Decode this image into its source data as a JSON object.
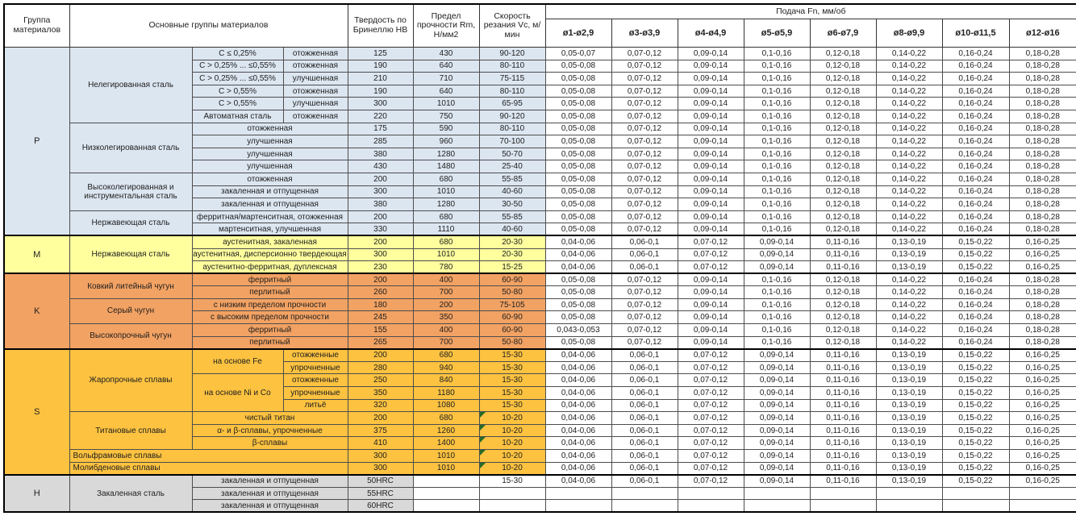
{
  "colors": {
    "zone_P": "#dce6f1",
    "zone_M": "#ffff9e",
    "zone_K": "#f2a263",
    "zone_S": "#fcc240",
    "zone_H": "#d9d9d9",
    "flag_green": "#276b27",
    "grid": "#4d4d4d"
  },
  "header": {
    "group": "Группа материалов",
    "main_groups": "Основные группы материалов",
    "hardness": "Твердость по Бринеллю HB",
    "strength": "Предел прочности Rm, Н/мм2",
    "speed": "Скорость резания Vc, м/мин",
    "feed": "Подача Fn, мм/об",
    "diameters": [
      "ø1-ø2,9",
      "ø3-ø3,9",
      "ø4-ø4,9",
      "ø5-ø5,9",
      "ø6-ø7,9",
      "ø8-ø9,9",
      "ø10-ø11,5",
      "ø12-ø16"
    ]
  },
  "feeds": {
    "p1": [
      "0,05-0,07",
      "0,07-0,12",
      "0,09-0,14",
      "0,1-0,16",
      "0,12-0,18",
      "0,14-0,22",
      "0,16-0,24",
      "0,18-0,28"
    ],
    "p": [
      "0,05-0,08",
      "0,07-0,12",
      "0,09-0,14",
      "0,1-0,16",
      "0,12-0,18",
      "0,14-0,22",
      "0,16-0,24",
      "0,18-0,28"
    ],
    "kf": [
      "0,043-0,053",
      "0,07-0,12",
      "0,09-0,14",
      "0,1-0,16",
      "0,12-0,18",
      "0,14-0,22",
      "0,16-0,24",
      "0,18-0,28"
    ],
    "m": [
      "0,04-0,06",
      "0,06-0,1",
      "0,07-0,12",
      "0,09-0,14",
      "0,11-0,16",
      "0,13-0,19",
      "0,15-0,22",
      "0,16-0,25"
    ],
    "none": [
      "",
      "",
      "",
      "",
      "",
      "",
      "",
      ""
    ]
  },
  "rows": [
    {
      "zone": "P",
      "group": {
        "text": "P",
        "rs": 15
      },
      "family": {
        "text": "Нелегированная сталь",
        "rs": 6
      },
      "desc": {
        "text": "C ≤ 0,25%"
      },
      "state": "отожженная",
      "hb": "125",
      "rm": "430",
      "vc": "90-120",
      "feed": "p1"
    },
    {
      "zone": "P",
      "desc": {
        "text": "C > 0,25% ... ≤0,55%"
      },
      "state": "отожженная",
      "hb": "190",
      "rm": "640",
      "vc": "80-110",
      "feed": "p"
    },
    {
      "zone": "P",
      "desc": {
        "text": "C > 0,25% ... ≤0,55%"
      },
      "state": "улучшенная",
      "hb": "210",
      "rm": "710",
      "vc": "75-115",
      "feed": "p"
    },
    {
      "zone": "P",
      "desc": {
        "text": "C > 0,55%"
      },
      "state": "отожженная",
      "hb": "190",
      "rm": "640",
      "vc": "80-110",
      "feed": "p"
    },
    {
      "zone": "P",
      "desc": {
        "text": "C > 0,55%"
      },
      "state": "улучшенная",
      "hb": "300",
      "rm": "1010",
      "vc": "65-95",
      "feed": "p"
    },
    {
      "zone": "P",
      "desc": {
        "text": "Автоматная сталь"
      },
      "state": "отожженная",
      "hb": "220",
      "rm": "750",
      "vc": "90-120",
      "feed": "p"
    },
    {
      "zone": "P",
      "sec": true,
      "family": {
        "text": "Низколегированная сталь",
        "rs": 4
      },
      "desc": {
        "text": "отожженная",
        "cs": 2
      },
      "hb": "175",
      "rm": "590",
      "vc": "80-110",
      "feed": "p"
    },
    {
      "zone": "P",
      "desc": {
        "text": "улучшенная",
        "cs": 2
      },
      "hb": "285",
      "rm": "960",
      "vc": "70-100",
      "feed": "p"
    },
    {
      "zone": "P",
      "desc": {
        "text": "улучшенная",
        "cs": 2
      },
      "hb": "380",
      "rm": "1280",
      "vc": "50-70",
      "feed": "p"
    },
    {
      "zone": "P",
      "desc": {
        "text": "улучшенная",
        "cs": 2
      },
      "hb": "430",
      "rm": "1480",
      "vc": "25-40",
      "feed": "p"
    },
    {
      "zone": "P",
      "sec": true,
      "family": {
        "text": "Высоколегированная и инструментальная сталь",
        "rs": 3
      },
      "desc": {
        "text": "отожженная",
        "cs": 2
      },
      "hb": "200",
      "rm": "680",
      "vc": "55-85",
      "feed": "p"
    },
    {
      "zone": "P",
      "desc": {
        "text": "закаленная и отпущенная",
        "cs": 2
      },
      "hb": "300",
      "rm": "1010",
      "vc": "40-60",
      "feed": "p"
    },
    {
      "zone": "P",
      "desc": {
        "text": "закаленная и отпущенная",
        "cs": 2
      },
      "hb": "380",
      "rm": "1280",
      "vc": "30-50",
      "feed": "p"
    },
    {
      "zone": "P",
      "sec": true,
      "family": {
        "text": "Нержавеющая сталь",
        "rs": 2
      },
      "desc": {
        "text": "ферритная/мартенситная, отожженная",
        "cs": 2,
        "clip": true
      },
      "hb": "200",
      "rm": "680",
      "vc": "55-85",
      "feed": "p"
    },
    {
      "zone": "P",
      "desc": {
        "text": "мартенситная, улучшенная",
        "cs": 2
      },
      "hb": "330",
      "rm": "1110",
      "vc": "40-60",
      "feed": "p"
    },
    {
      "zone": "M",
      "zs": true,
      "group": {
        "text": "M",
        "rs": 3
      },
      "family": {
        "text": "Нержавеющая сталь",
        "rs": 3
      },
      "desc": {
        "text": "аустенитная, закаленная",
        "cs": 2
      },
      "hb": "200",
      "rm": "680",
      "vc": "20-30",
      "feed": "m"
    },
    {
      "zone": "M",
      "desc": {
        "text": "аустенитная, дисперсионно твердеющая",
        "cs": 2,
        "clip": true
      },
      "hb": "300",
      "rm": "1010",
      "vc": "20-30",
      "feed": "m"
    },
    {
      "zone": "M",
      "desc": {
        "text": "аустенитно-ферритная, дуплексная",
        "cs": 2
      },
      "hb": "230",
      "rm": "780",
      "vc": "15-25",
      "feed": "m"
    },
    {
      "zone": "K",
      "zs": true,
      "group": {
        "text": "K",
        "rs": 6
      },
      "family": {
        "text": "Ковкий литейный чугун",
        "rs": 2
      },
      "desc": {
        "text": "ферритный",
        "cs": 2
      },
      "hb": "200",
      "rm": "400",
      "vc": "60-90",
      "feed": "p"
    },
    {
      "zone": "K",
      "desc": {
        "text": "перлитный",
        "cs": 2
      },
      "hb": "260",
      "rm": "700",
      "vc": "50-80",
      "feed": "p"
    },
    {
      "zone": "K",
      "sec": true,
      "family": {
        "text": "Серый чугун",
        "rs": 2
      },
      "desc": {
        "text": "с низким пределом прочности",
        "cs": 2
      },
      "hb": "180",
      "rm": "200",
      "vc": "75-105",
      "feed": "p"
    },
    {
      "zone": "K",
      "desc": {
        "text": "с высоким пределом прочности",
        "cs": 2
      },
      "hb": "245",
      "rm": "350",
      "vc": "60-90",
      "feed": "p"
    },
    {
      "zone": "K",
      "sec": true,
      "family": {
        "text": "Высокопрочный чугун",
        "rs": 2
      },
      "desc": {
        "text": "ферритный",
        "cs": 2
      },
      "hb": "155",
      "rm": "400",
      "vc": "60-90",
      "feed": "kf"
    },
    {
      "zone": "K",
      "desc": {
        "text": "перлитный",
        "cs": 2
      },
      "hb": "265",
      "rm": "700",
      "vc": "50-80",
      "feed": "p"
    },
    {
      "zone": "S",
      "zs": true,
      "group": {
        "text": "S",
        "rs": 10
      },
      "family": {
        "text": "Жаропрочные сплавы",
        "rs": 5
      },
      "desc": {
        "text": "на основе Fe",
        "rs": 2
      },
      "state": "отожженные",
      "hb": "200",
      "rm": "680",
      "vc": "15-30",
      "feed": "m"
    },
    {
      "zone": "S",
      "state": "упрочненные",
      "hb": "280",
      "rm": "940",
      "vc": "15-30",
      "feed": "m"
    },
    {
      "zone": "S",
      "desc": {
        "text": "на основе Ni и Co",
        "rs": 3
      },
      "state": "отожженные",
      "hb": "250",
      "rm": "840",
      "vc": "15-30",
      "feed": "m"
    },
    {
      "zone": "S",
      "state": "упрочненные",
      "hb": "350",
      "rm": "1180",
      "vc": "15-30",
      "feed": "m"
    },
    {
      "zone": "S",
      "state": "литьё",
      "hb": "320",
      "rm": "1080",
      "vc": "15-30",
      "feed": "m"
    },
    {
      "zone": "S",
      "sec": true,
      "family": {
        "text": "Титановые сплавы",
        "rs": 3
      },
      "desc": {
        "text": "чистый титан",
        "cs": 2
      },
      "hb": "200",
      "rm": "680",
      "vc": "10-20",
      "vcFlag": true,
      "feed": "m"
    },
    {
      "zone": "S",
      "desc": {
        "text": "α- и β-сплавы, упрочненные",
        "cs": 2
      },
      "hb": "375",
      "rm": "1260",
      "vc": "10-20",
      "vcFlag": true,
      "feed": "m"
    },
    {
      "zone": "S",
      "desc": {
        "text": "β-сплавы",
        "cs": 2
      },
      "hb": "410",
      "rm": "1400",
      "vc": "10-20",
      "vcFlag": true,
      "feed": "m"
    },
    {
      "zone": "S",
      "sec": true,
      "family": {
        "text": "Вольфрамовые сплавы",
        "cs": 3,
        "left": true
      },
      "hb": "300",
      "rm": "1010",
      "vc": "10-20",
      "vcFlag": true,
      "feed": "m"
    },
    {
      "zone": "S",
      "sec": true,
      "family": {
        "text": "Молибденовые сплавы",
        "cs": 3,
        "left": true
      },
      "hb": "300",
      "rm": "1010",
      "vc": "10-20",
      "vcFlag": true,
      "feed": "m"
    },
    {
      "zone": "H",
      "zs": true,
      "group": {
        "text": "H",
        "rs": 3
      },
      "family": {
        "text": "Закаленная сталь",
        "rs": 3
      },
      "desc": {
        "text": "закаленная и отпущенная",
        "cs": 2
      },
      "hb": "50HRC",
      "rm": "",
      "vc": "15-30",
      "feed": "m"
    },
    {
      "zone": "H",
      "desc": {
        "text": "закаленная и отпущенная",
        "cs": 2
      },
      "hb": "55HRC",
      "rm": "",
      "vc": "",
      "feed": "none"
    },
    {
      "zone": "H",
      "desc": {
        "text": "закаленная и отпущенная",
        "cs": 2
      },
      "hb": "60HRC",
      "rm": "",
      "vc": "",
      "feed": "none"
    }
  ]
}
